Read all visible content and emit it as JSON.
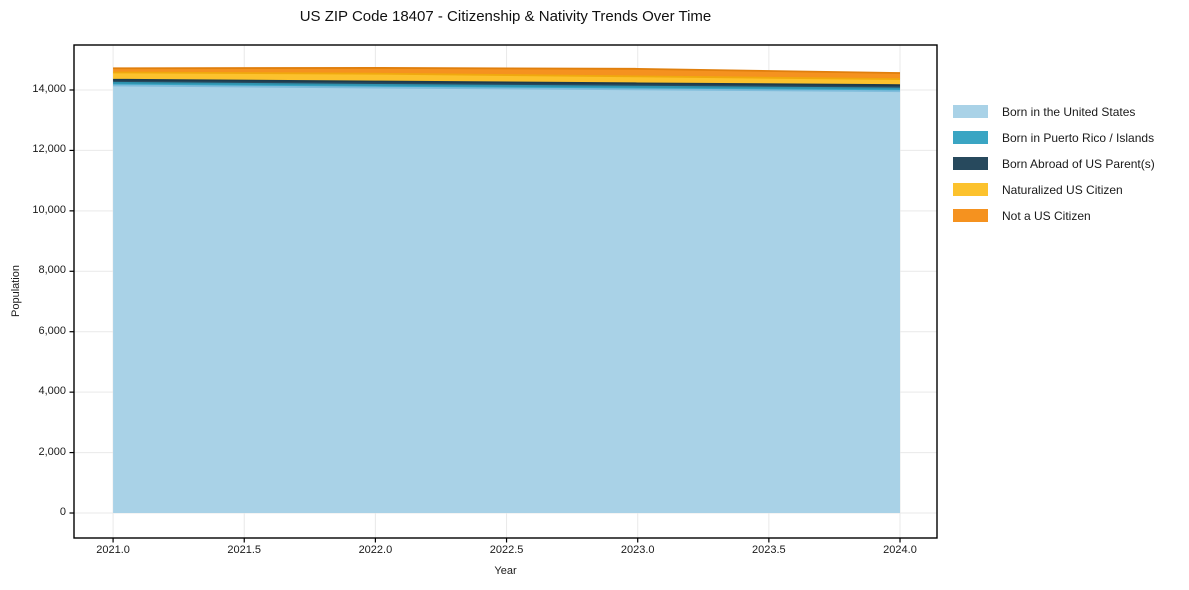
{
  "chart_data": {
    "type": "area",
    "stacked": true,
    "title": "US ZIP Code 18407 - Citizenship & Nativity Trends Over Time",
    "xlabel": "Year",
    "ylabel": "Population",
    "x": [
      2021,
      2022,
      2023,
      2024
    ],
    "series": [
      {
        "name": "Born in the United States",
        "values": [
          14150,
          14080,
          14020,
          13960
        ],
        "fill": "#a9d2e7",
        "line": "#7fbcdb"
      },
      {
        "name": "Born in Puerto Rico / Islands",
        "values": [
          90,
          90,
          90,
          90
        ],
        "fill": "#3aa5c3",
        "line": "#2e92ae"
      },
      {
        "name": "Born Abroad of US Parent(s)",
        "values": [
          100,
          110,
          110,
          110
        ],
        "fill": "#27495d",
        "line": "#1d3a4b"
      },
      {
        "name": "Naturalized US Citizen",
        "values": [
          240,
          260,
          230,
          200
        ],
        "fill": "#fcc22d",
        "line": "#f0a90e"
      },
      {
        "name": "Not a US Citizen",
        "values": [
          140,
          190,
          250,
          200
        ],
        "fill": "#f5921f",
        "line": "#e07f0d"
      }
    ],
    "xlim": [
      2020.851,
      2024.141
    ],
    "ylim": [
      -827,
      15489
    ],
    "xticks": [
      2021.0,
      2021.5,
      2022.0,
      2022.5,
      2023.0,
      2023.5,
      2024.0
    ],
    "xtick_labels": [
      "2021.0",
      "2021.5",
      "2022.0",
      "2022.5",
      "2023.0",
      "2023.5",
      "2024.0"
    ],
    "yticks": [
      0,
      2000,
      4000,
      6000,
      8000,
      10000,
      12000,
      14000
    ],
    "ytick_labels": [
      "0",
      "2,000",
      "4,000",
      "6,000",
      "8,000",
      "10,000",
      "12,000",
      "14,000"
    ],
    "grid": true,
    "grid_color": "#e9e9e9",
    "border_color": "#000000",
    "legend_position": "right"
  }
}
